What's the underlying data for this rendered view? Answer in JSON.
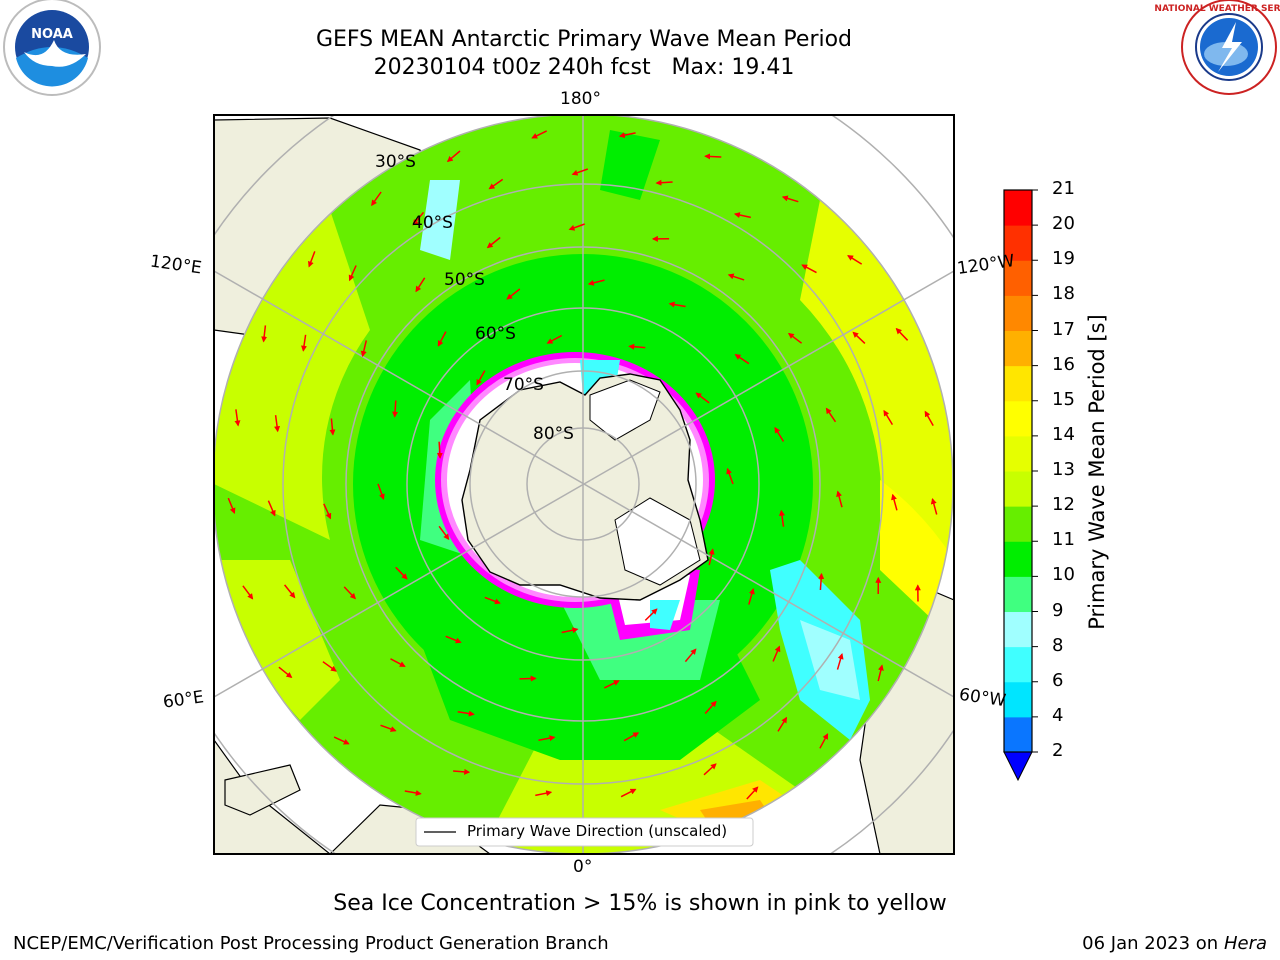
{
  "title": {
    "line1": "GEFS MEAN Antarctic Primary Wave Mean Period",
    "line2": "20230104 t00z 240h fcst   Max: 19.41"
  },
  "logos": {
    "left": {
      "name": "NOAA",
      "icon": "noaa-logo"
    },
    "right": {
      "name": "NATIONAL WEATHER SERVICE",
      "icon": "nws-logo"
    }
  },
  "map": {
    "projection": "south-polar-stereographic",
    "latitude_labels": [
      "30°S",
      "40°S",
      "50°S",
      "60°S",
      "70°S",
      "80°S"
    ],
    "longitude_labels": {
      "top": "180°",
      "bottom": "0°",
      "upper_left": "120°E",
      "lower_left": "60°E",
      "upper_right": "120°W",
      "lower_right": "60°W"
    },
    "legend": "Primary Wave Direction (unscaled)",
    "arrow_color": "#ff0000",
    "land_color": "#efefdd",
    "ice_colors": [
      "#ff00ff",
      "#ff88ff",
      "#ffa500",
      "#ffff00"
    ]
  },
  "colorbar": {
    "label": "Primary Wave Mean Period [s]",
    "ticks": [
      "2",
      "4",
      "6",
      "8",
      "9",
      "10",
      "11",
      "12",
      "13",
      "14",
      "15",
      "16",
      "17",
      "18",
      "19",
      "20",
      "21"
    ],
    "colors": [
      "#0a76ff",
      "#00e5ff",
      "#40ffff",
      "#a0ffff",
      "#40ff80",
      "#00ee00",
      "#66ee00",
      "#c8ff00",
      "#e6ff00",
      "#ffff00",
      "#ffe600",
      "#ffb000",
      "#ff8800",
      "#ff6000",
      "#ff3000",
      "#ff0000"
    ],
    "extend_color": "#0000ff"
  },
  "caption": "Sea Ice Concentration > 15% is shown in pink to yellow",
  "footer": {
    "left": "NCEP/EMC/Verification Post Processing Product Generation Branch",
    "right_prefix": "06 Jan 2023 on ",
    "right_host": "Hera"
  }
}
